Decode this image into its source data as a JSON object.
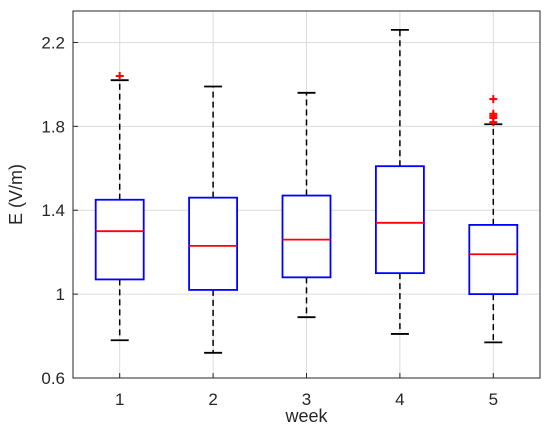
{
  "chart_data": {
    "type": "boxplot",
    "title": "",
    "xlabel": "week",
    "ylabel": "E (V/m)",
    "ylim": [
      0.6,
      2.35
    ],
    "yticks": [
      0.6,
      1,
      1.4,
      1.8,
      2.2
    ],
    "ytick_labels": [
      "0.6",
      "1",
      "1.4",
      "1.8",
      "2.2"
    ],
    "categories": [
      "1",
      "2",
      "3",
      "4",
      "5"
    ],
    "grid": true,
    "legend": "none",
    "boxes": [
      {
        "label": "1",
        "whisker_low": 0.78,
        "q1": 1.07,
        "median": 1.3,
        "q3": 1.45,
        "whisker_high": 2.02,
        "outliers": [
          2.04
        ]
      },
      {
        "label": "2",
        "whisker_low": 0.72,
        "q1": 1.02,
        "median": 1.23,
        "q3": 1.46,
        "whisker_high": 1.99,
        "outliers": []
      },
      {
        "label": "3",
        "whisker_low": 0.89,
        "q1": 1.08,
        "median": 1.26,
        "q3": 1.47,
        "whisker_high": 1.96,
        "outliers": []
      },
      {
        "label": "4",
        "whisker_low": 0.81,
        "q1": 1.1,
        "median": 1.34,
        "q3": 1.61,
        "whisker_high": 2.26,
        "outliers": []
      },
      {
        "label": "5",
        "whisker_low": 0.77,
        "q1": 1.0,
        "median": 1.19,
        "q3": 1.33,
        "whisker_high": 1.81,
        "outliers": [
          1.82,
          1.84,
          1.85,
          1.86,
          1.93
        ]
      }
    ],
    "colors": {
      "box": "#0000ff",
      "median": "#ff0000",
      "whisker": "#000000",
      "outlier": "#ff0000",
      "grid": "#dcdcdc",
      "axis": "#262626"
    }
  }
}
